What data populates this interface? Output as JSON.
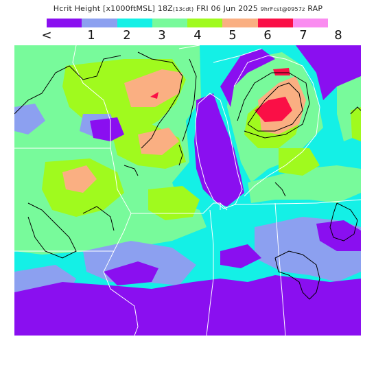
{
  "title": {
    "main": "Hcrit Height [x1000ftMSL] 18Z",
    "sub1": "(13cdt)",
    "main2": "FRI 06 Jun 2025",
    "sub2": "9hrFcst@0957z",
    "model": "RAP"
  },
  "legend": {
    "colors": [
      "#8a0ff0",
      "#8ca0f0",
      "#14f0e6",
      "#78fa9b",
      "#a0fa1e",
      "#faaf82",
      "#fa0f46",
      "#fa8cf0"
    ],
    "labels": [
      "<",
      "1",
      "2",
      "3",
      "4",
      "5",
      "6",
      "7",
      "8"
    ],
    "units": "x1000 ft MSL"
  },
  "map": {
    "region": "Upper Midwest / Great Lakes",
    "overlays": [
      "state-boundaries",
      "lake-michigan",
      "contour-lines"
    ]
  }
}
